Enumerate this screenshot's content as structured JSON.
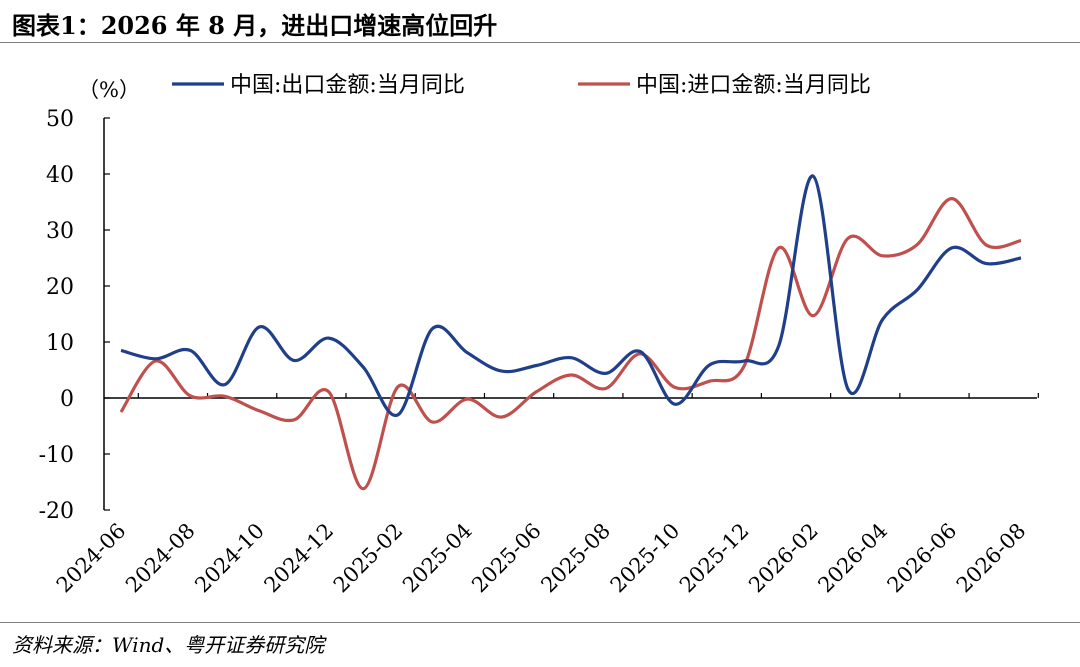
{
  "title_prefix": "图表1：",
  "title_body": "2026 年 8 月，进出口增速高位回升",
  "source": "资料来源：Wind、粤开证券研究院",
  "chart_data": {
    "type": "line",
    "unit_label": "（%）",
    "ylim": [
      -20,
      50
    ],
    "yticks": [
      -20,
      -10,
      0,
      10,
      20,
      30,
      40,
      50
    ],
    "x": [
      "2024-06",
      "2024-07",
      "2024-08",
      "2024-09",
      "2024-10",
      "2024-11",
      "2024-12",
      "2025-01",
      "2025-02",
      "2025-03",
      "2025-04",
      "2025-05",
      "2025-06",
      "2025-07",
      "2025-08",
      "2025-09",
      "2025-10",
      "2025-11",
      "2025-12",
      "2026-01",
      "2026-02",
      "2026-03",
      "2026-04",
      "2026-05",
      "2026-06",
      "2026-07",
      "2026-08"
    ],
    "xtick_labels": [
      "2024-06",
      "2024-08",
      "2024-10",
      "2024-12",
      "2025-02",
      "2025-04",
      "2025-06",
      "2025-08",
      "2025-10",
      "2025-12",
      "2026-02",
      "2026-04",
      "2026-06",
      "2026-08"
    ],
    "legend_position": "top",
    "grid": false,
    "series": [
      {
        "name": "中国:出口金额:当月同比",
        "color": "#1f3f8a",
        "values": [
          8.5,
          7.0,
          8.5,
          2.4,
          12.7,
          6.7,
          10.7,
          5.5,
          -3.0,
          12.4,
          8.1,
          4.8,
          5.8,
          7.2,
          4.4,
          8.3,
          -1.1,
          5.9,
          6.6,
          9.3,
          39.6,
          1.6,
          14.0,
          19.3,
          26.8,
          24.0,
          25.0
        ]
      },
      {
        "name": "中国:进口金额:当月同比",
        "color": "#c0504d",
        "values": [
          -2.5,
          6.6,
          0.4,
          0.3,
          -2.3,
          -3.9,
          1.1,
          -16.2,
          2.0,
          -4.3,
          -0.2,
          -3.4,
          1.1,
          4.1,
          1.7,
          7.9,
          1.9,
          3.0,
          5.7,
          26.8,
          14.7,
          28.5,
          25.4,
          27.4,
          35.6,
          27.3,
          28.1
        ]
      }
    ]
  }
}
